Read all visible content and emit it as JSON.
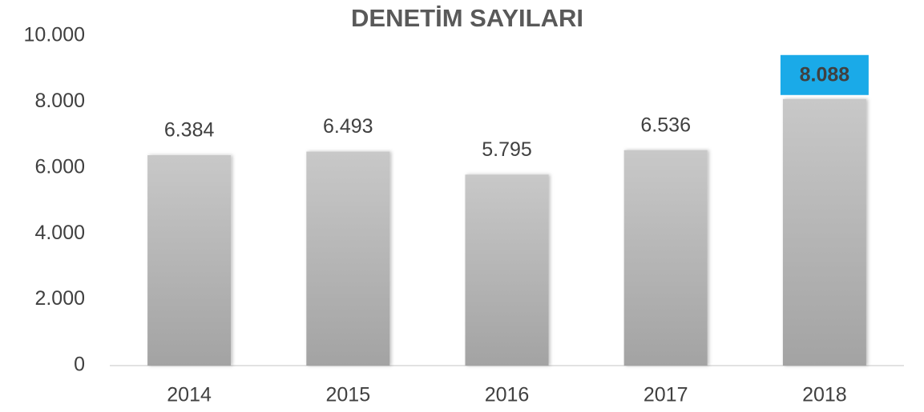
{
  "chart_data": {
    "type": "bar",
    "title": "DENETİM SAYILARI",
    "categories": [
      "2014",
      "2015",
      "2016",
      "2017",
      "2018"
    ],
    "values": [
      6384,
      6493,
      5795,
      6536,
      8088
    ],
    "value_labels": [
      "6.384",
      "6.493",
      "5.795",
      "6.536",
      "8.088"
    ],
    "color": "#b5b5b5",
    "ylim": [
      0,
      10000
    ],
    "yticks": [
      0,
      {
        "value": 2000,
        "label": "2.000"
      },
      {
        "value": 4000,
        "label": "4.000"
      },
      {
        "value": 6000,
        "label": "6.000"
      },
      {
        "value": 8000,
        "label": "8.000"
      },
      {
        "value": 10000,
        "label": "10.000"
      }
    ],
    "grid": false,
    "value_label_highlight": {
      "index": 4,
      "color": "#1aaae8"
    }
  }
}
